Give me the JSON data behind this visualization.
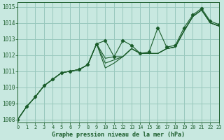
{
  "title": "Graphe pression niveau de la mer (hPa)",
  "background_color": "#c8e8e0",
  "grid_color": "#98c8bc",
  "line_color": "#1a5c2a",
  "series_with_markers": [
    [
      1008.0,
      1008.8,
      1009.4,
      1010.1,
      1010.5,
      1010.9,
      1011.0,
      1011.1,
      1011.4,
      1012.7,
      1012.9,
      1011.9,
      1012.9,
      1012.6,
      1012.1,
      1012.2,
      1013.7,
      1012.5,
      1012.6,
      1013.7,
      1014.5,
      1014.9,
      1014.1,
      1013.9
    ]
  ],
  "series_no_markers": [
    [
      1008.0,
      1008.8,
      1009.4,
      1010.1,
      1010.5,
      1010.9,
      1011.0,
      1011.1,
      1011.4,
      1012.7,
      1011.2,
      1011.5,
      1011.9,
      1012.4,
      1012.1,
      1012.1,
      1012.1,
      1012.4,
      1012.5,
      1013.5,
      1014.4,
      1014.8,
      1014.0,
      1013.8
    ],
    [
      1008.0,
      1008.8,
      1009.4,
      1010.1,
      1010.5,
      1010.9,
      1011.0,
      1011.1,
      1011.4,
      1012.7,
      1011.5,
      1011.7,
      1011.9,
      1012.4,
      1012.1,
      1012.1,
      1012.1,
      1012.4,
      1012.5,
      1013.5,
      1014.4,
      1014.8,
      1014.0,
      1013.8
    ],
    [
      1008.0,
      1008.8,
      1009.4,
      1010.1,
      1010.5,
      1010.9,
      1011.0,
      1011.1,
      1011.4,
      1012.7,
      1011.8,
      1011.9,
      1011.9,
      1012.4,
      1012.1,
      1012.1,
      1012.1,
      1012.4,
      1012.5,
      1013.5,
      1014.4,
      1014.8,
      1014.0,
      1013.8
    ]
  ],
  "xlim": [
    0,
    23
  ],
  "ylim": [
    1007.8,
    1015.3
  ],
  "yticks": [
    1008,
    1009,
    1010,
    1011,
    1012,
    1013,
    1014,
    1015
  ],
  "xticks": [
    0,
    1,
    2,
    3,
    4,
    5,
    6,
    7,
    8,
    9,
    10,
    11,
    12,
    13,
    14,
    15,
    16,
    17,
    18,
    19,
    20,
    21,
    22,
    23
  ]
}
